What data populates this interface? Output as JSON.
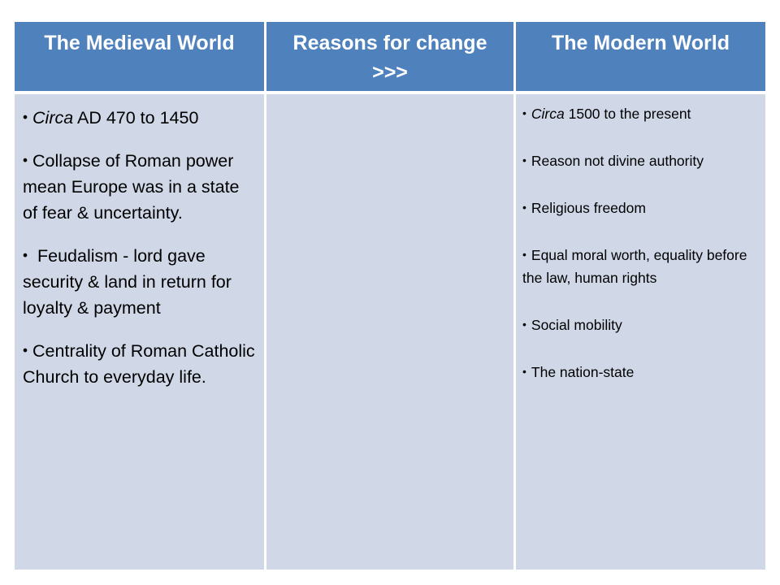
{
  "table": {
    "headers": [
      {
        "label": "The  Medieval World"
      },
      {
        "label": "Reasons for change",
        "sublabel": ">>>"
      },
      {
        "label": "The Modern World"
      }
    ],
    "medieval_items": [
      {
        "em": "Circa",
        "text": "  AD 470 to 1450"
      },
      {
        "em": "",
        "text": "Collapse of Roman power mean Europe was in a state of fear & uncertainty."
      },
      {
        "em": "",
        "text": " Feudalism - lord gave security & land in return for loyalty & payment"
      },
      {
        "em": "",
        "text": "Centrality of Roman Catholic Church to everyday life."
      }
    ],
    "reasons_items": [],
    "modern_items": [
      {
        "em": "Circa",
        "text": " 1500 to the present"
      },
      {
        "em": "",
        "text": "Reason not divine authority"
      },
      {
        "em": "",
        "text": "Religious freedom"
      },
      {
        "em": "",
        "text": "Equal moral worth, equality before the law, human rights"
      },
      {
        "em": "",
        "text": "Social mobility"
      },
      {
        "em": "",
        "text": "The nation-state"
      }
    ],
    "bullet_glyph": "•"
  },
  "colors": {
    "header_bg": "#4f81bd",
    "body_bg": "#d0d8e8",
    "header_text": "#ffffff"
  }
}
